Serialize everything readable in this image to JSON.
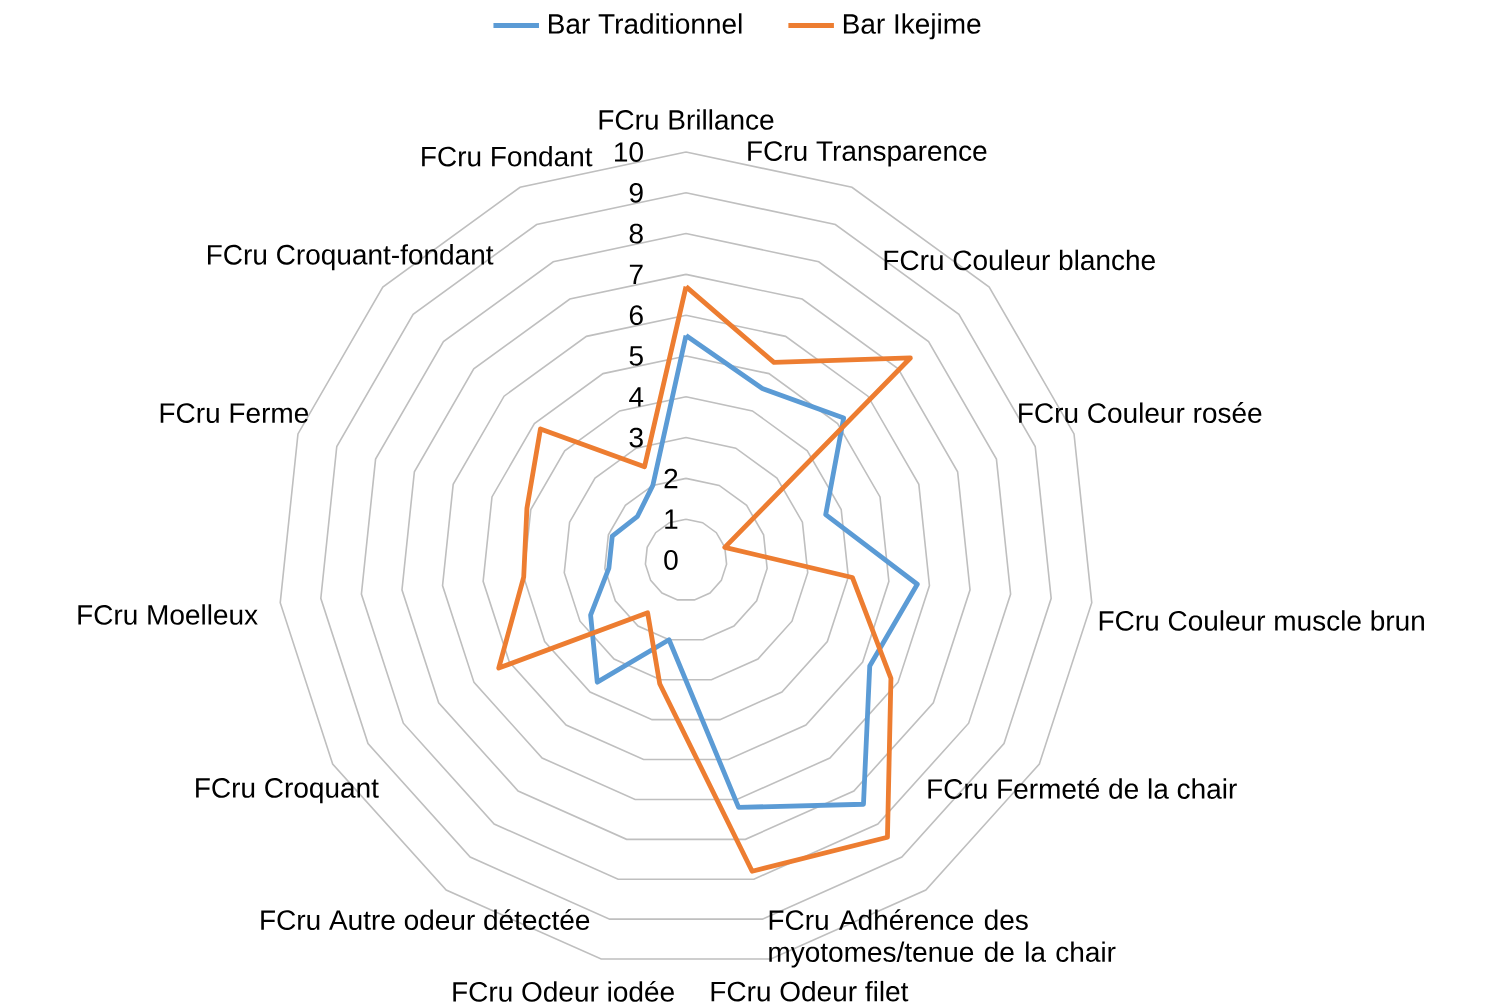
{
  "chart_data": {
    "type": "radar",
    "categories": [
      "FCru Brillance",
      "FCru Transparence",
      "FCru Couleur blanche",
      "FCru Couleur rosée",
      "FCru Couleur muscle brun",
      "FCru Fermeté de la chair",
      "FCru Adhérence des myotomes/tenue de la chair",
      "FCru Odeur filet",
      "FCru Odeur iodée",
      "FCru Autre odeur détectée",
      "FCru Croquant",
      "FCru Moelleux",
      "FCru Ferme",
      "FCru Croquant-fondant",
      "FCru Fondant"
    ],
    "series": [
      {
        "name": "Bar Traditionnel",
        "color": "#5b9bd5",
        "values": [
          5.5,
          4.6,
          5.2,
          3.6,
          5.7,
          5.2,
          7.4,
          6.2,
          2.0,
          3.7,
          2.7,
          1.9,
          1.9,
          1.6,
          2.0
        ]
      },
      {
        "name": "Bar Ikejime",
        "color": "#ed7d31",
        "values": [
          6.7,
          5.3,
          7.4,
          1.0,
          4.1,
          5.8,
          8.4,
          7.8,
          3.1,
          1.6,
          5.3,
          4.0,
          4.1,
          4.8,
          2.5
        ]
      }
    ],
    "ylim": [
      0,
      10
    ],
    "yticks": [
      0,
      1,
      2,
      3,
      4,
      5,
      6,
      7,
      8,
      9,
      10
    ],
    "grid": true,
    "legend": "top",
    "marker": "none",
    "line_style": "solid"
  }
}
